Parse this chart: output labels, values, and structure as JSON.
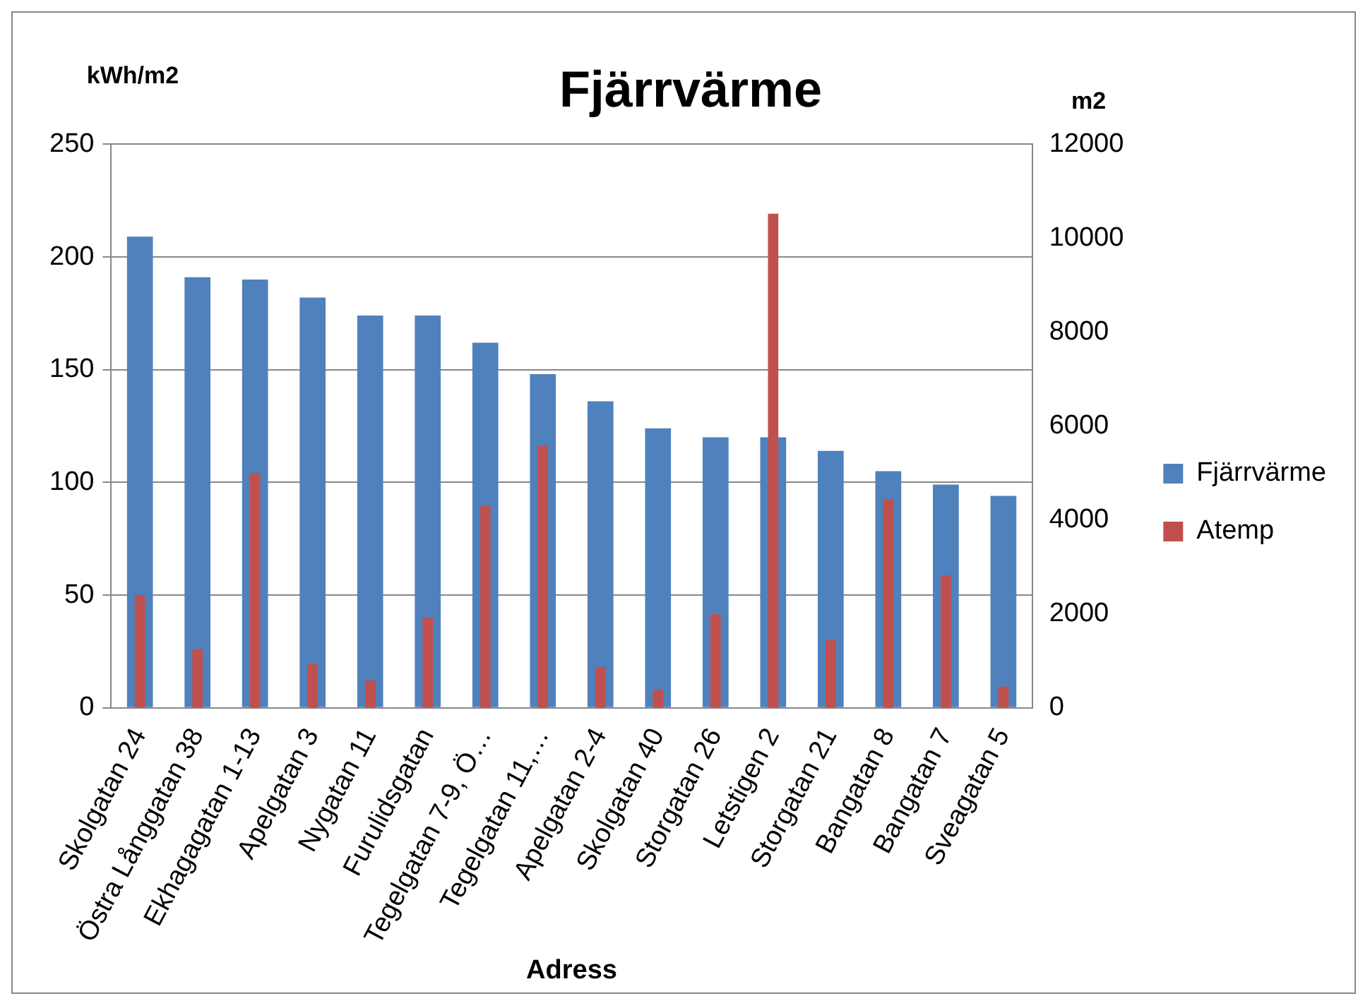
{
  "chart_data": {
    "type": "bar",
    "title": "Fjärrvärme",
    "xlabel": "Adress",
    "ylabel": "kWh/m2",
    "y2label": "m2",
    "categories": [
      "Skolgatan 24",
      "Östra Långgatan 38",
      "Ekhagagatan 1-13",
      "Apelgatan 3",
      "Nygatan 11",
      "Furulidsgatan",
      "Tegelgatan 7-9, Ö…",
      "Tegelgatan 11,…",
      "Apelgatan 2-4",
      "Skolgatan 40",
      "Storgatan 26",
      "Letstigen 2",
      "Storgatan 21",
      "Bangatan 8",
      "Bangatan 7",
      "Sveagatan 5"
    ],
    "series": [
      {
        "name": "Fjärrvärme",
        "color": "#4f81bd",
        "values": [
          209,
          191,
          190,
          182,
          174,
          174,
          162,
          148,
          136,
          124,
          120,
          120,
          114,
          105,
          99,
          94
        ]
      },
      {
        "name": "Atemp",
        "color": "#c0504d",
        "axis": "y2",
        "values": [
          2400,
          1250,
          5000,
          930,
          580,
          1920,
          4300,
          5580,
          870,
          380,
          1990,
          10520,
          1440,
          4430,
          2820,
          450
        ]
      }
    ],
    "ylim": [
      0,
      250
    ],
    "yticks": [
      0,
      50,
      100,
      150,
      200,
      250
    ],
    "y2lim": [
      0,
      12000
    ],
    "y2ticks": [
      0,
      2000,
      4000,
      6000,
      8000,
      10000,
      12000
    ],
    "grid": "y",
    "legend": "right"
  }
}
